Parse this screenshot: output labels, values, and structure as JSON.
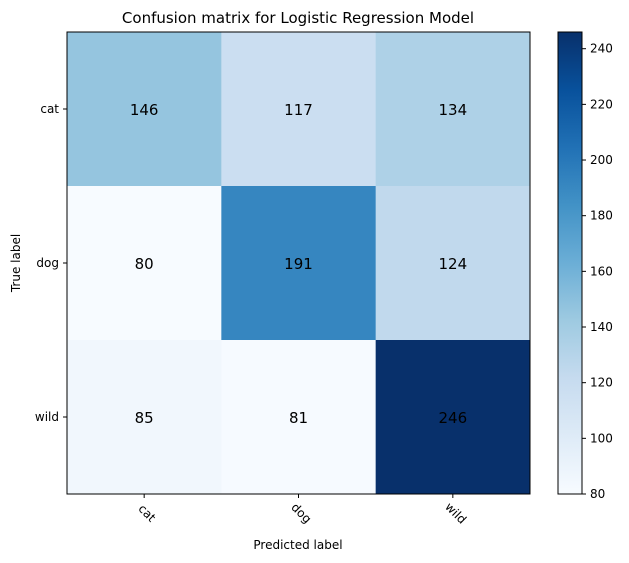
{
  "chart_data": {
    "type": "heatmap",
    "title": "Confusion matrix for Logistic Regression Model",
    "xlabel": "Predicted label",
    "ylabel": "True label",
    "x_categories": [
      "cat",
      "dog",
      "wild"
    ],
    "y_categories": [
      "cat",
      "dog",
      "wild"
    ],
    "matrix": [
      [
        146,
        117,
        134
      ],
      [
        80,
        191,
        124
      ],
      [
        85,
        81,
        246
      ]
    ],
    "colormap": "Blues",
    "colorbar": {
      "range": [
        80,
        246
      ],
      "ticks": [
        80,
        100,
        120,
        140,
        160,
        180,
        200,
        220,
        240
      ]
    },
    "grid": false
  }
}
